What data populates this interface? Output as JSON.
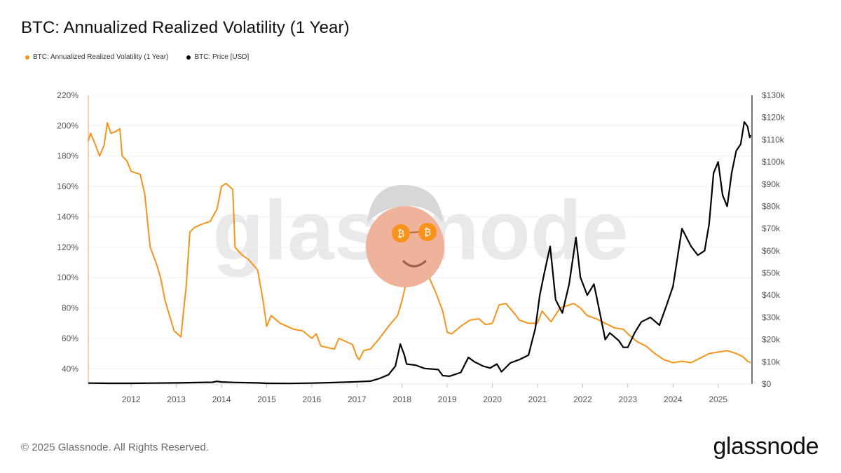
{
  "header": {
    "title": "BTC: Annualized Realized Volatility (1 Year)"
  },
  "legend": [
    {
      "label": "BTC: Annualized Realized Volatility (1 Year)",
      "color": "#f7931a"
    },
    {
      "label": "BTC: Price [USD]",
      "color": "#000000"
    }
  ],
  "watermark": "glassnode",
  "footer": {
    "copyright": "© 2025 Glassnode. All Rights Reserved.",
    "logo": "glassnode"
  },
  "chart_data": {
    "type": "line",
    "title": "BTC: Annualized Realized Volatility (1 Year)",
    "x_ticks": [
      "2012",
      "2013",
      "2014",
      "2015",
      "2016",
      "2017",
      "2018",
      "2019",
      "2020",
      "2021",
      "2022",
      "2023",
      "2024",
      "2025"
    ],
    "x_range": [
      2011.05,
      2025.75
    ],
    "left_axis": {
      "ticks": [
        "40%",
        "60%",
        "80%",
        "100%",
        "120%",
        "140%",
        "160%",
        "180%",
        "200%",
        "220%"
      ],
      "range": [
        30,
        220
      ]
    },
    "right_axis": {
      "ticks": [
        "$0",
        "$10k",
        "$20k",
        "$30k",
        "$40k",
        "$50k",
        "$60k",
        "$70k",
        "$80k",
        "$90k",
        "$100k",
        "$110k",
        "$120k",
        "$130k"
      ],
      "range": [
        0,
        130000
      ]
    },
    "grid": "horizontal",
    "legend_position": "top-left",
    "series": [
      {
        "name": "BTC: Annualized Realized Volatility (1 Year)",
        "axis": "left",
        "color": "#f7931a",
        "points": [
          [
            2011.05,
            190
          ],
          [
            2011.1,
            195
          ],
          [
            2011.2,
            188
          ],
          [
            2011.3,
            180
          ],
          [
            2011.4,
            187
          ],
          [
            2011.47,
            202
          ],
          [
            2011.55,
            195
          ],
          [
            2011.65,
            196
          ],
          [
            2011.75,
            198
          ],
          [
            2011.8,
            180
          ],
          [
            2011.9,
            177
          ],
          [
            2012.0,
            170
          ],
          [
            2012.2,
            168
          ],
          [
            2012.3,
            155
          ],
          [
            2012.42,
            120
          ],
          [
            2012.55,
            110
          ],
          [
            2012.65,
            100
          ],
          [
            2012.75,
            85
          ],
          [
            2012.85,
            75
          ],
          [
            2012.95,
            65
          ],
          [
            2013.1,
            61
          ],
          [
            2013.22,
            95
          ],
          [
            2013.3,
            130
          ],
          [
            2013.4,
            133
          ],
          [
            2013.55,
            135
          ],
          [
            2013.75,
            137
          ],
          [
            2013.9,
            145
          ],
          [
            2014.0,
            160
          ],
          [
            2014.1,
            162
          ],
          [
            2014.25,
            158
          ],
          [
            2014.3,
            120
          ],
          [
            2014.45,
            115
          ],
          [
            2014.6,
            112
          ],
          [
            2014.8,
            105
          ],
          [
            2014.92,
            85
          ],
          [
            2015.0,
            68
          ],
          [
            2015.1,
            75
          ],
          [
            2015.3,
            70
          ],
          [
            2015.6,
            66
          ],
          [
            2015.8,
            65
          ],
          [
            2016.0,
            60
          ],
          [
            2016.1,
            63
          ],
          [
            2016.2,
            55
          ],
          [
            2016.5,
            53
          ],
          [
            2016.6,
            60
          ],
          [
            2016.9,
            56
          ],
          [
            2017.0,
            48
          ],
          [
            2017.05,
            46
          ],
          [
            2017.15,
            52
          ],
          [
            2017.3,
            53
          ],
          [
            2017.5,
            60
          ],
          [
            2017.7,
            68
          ],
          [
            2017.9,
            75
          ],
          [
            2018.0,
            85
          ],
          [
            2018.1,
            98
          ],
          [
            2018.3,
            104
          ],
          [
            2018.6,
            100
          ],
          [
            2018.75,
            90
          ],
          [
            2018.9,
            78
          ],
          [
            2019.0,
            64
          ],
          [
            2019.1,
            63
          ],
          [
            2019.3,
            68
          ],
          [
            2019.5,
            72
          ],
          [
            2019.7,
            73
          ],
          [
            2019.85,
            69
          ],
          [
            2020.0,
            70
          ],
          [
            2020.15,
            82
          ],
          [
            2020.3,
            83
          ],
          [
            2020.5,
            76
          ],
          [
            2020.6,
            72
          ],
          [
            2020.8,
            70
          ],
          [
            2021.0,
            70
          ],
          [
            2021.1,
            78
          ],
          [
            2021.3,
            71
          ],
          [
            2021.5,
            80
          ],
          [
            2021.8,
            83
          ],
          [
            2021.95,
            80
          ],
          [
            2022.1,
            75
          ],
          [
            2022.3,
            73
          ],
          [
            2022.5,
            70
          ],
          [
            2022.7,
            67
          ],
          [
            2022.9,
            66
          ],
          [
            2023.0,
            63
          ],
          [
            2023.2,
            58
          ],
          [
            2023.4,
            55
          ],
          [
            2023.6,
            50
          ],
          [
            2023.8,
            46
          ],
          [
            2024.0,
            44
          ],
          [
            2024.2,
            45
          ],
          [
            2024.4,
            44
          ],
          [
            2024.6,
            47
          ],
          [
            2024.8,
            50
          ],
          [
            2025.0,
            51
          ],
          [
            2025.2,
            52
          ],
          [
            2025.4,
            50
          ],
          [
            2025.55,
            48
          ],
          [
            2025.65,
            45
          ],
          [
            2025.72,
            44
          ]
        ]
      },
      {
        "name": "BTC: Price [USD]",
        "axis": "right",
        "color": "#000000",
        "points": [
          [
            2011.05,
            400
          ],
          [
            2011.5,
            300
          ],
          [
            2012.0,
            300
          ],
          [
            2012.5,
            400
          ],
          [
            2013.0,
            500
          ],
          [
            2013.8,
            800
          ],
          [
            2013.9,
            1200
          ],
          [
            2014.0,
            900
          ],
          [
            2014.3,
            700
          ],
          [
            2014.8,
            500
          ],
          [
            2015.0,
            300
          ],
          [
            2015.5,
            250
          ],
          [
            2016.0,
            400
          ],
          [
            2016.5,
            650
          ],
          [
            2017.0,
            1000
          ],
          [
            2017.3,
            1300
          ],
          [
            2017.5,
            2500
          ],
          [
            2017.7,
            4200
          ],
          [
            2017.85,
            8000
          ],
          [
            2017.96,
            18000
          ],
          [
            2018.05,
            13000
          ],
          [
            2018.1,
            9000
          ],
          [
            2018.3,
            8500
          ],
          [
            2018.5,
            7000
          ],
          [
            2018.8,
            6500
          ],
          [
            2018.9,
            3800
          ],
          [
            2019.05,
            3500
          ],
          [
            2019.3,
            5200
          ],
          [
            2019.47,
            12000
          ],
          [
            2019.6,
            10000
          ],
          [
            2019.8,
            8000
          ],
          [
            2019.95,
            7200
          ],
          [
            2020.1,
            9000
          ],
          [
            2020.2,
            5500
          ],
          [
            2020.4,
            9500
          ],
          [
            2020.6,
            11000
          ],
          [
            2020.8,
            13000
          ],
          [
            2020.95,
            25000
          ],
          [
            2021.05,
            40000
          ],
          [
            2021.15,
            50000
          ],
          [
            2021.28,
            62000
          ],
          [
            2021.4,
            38000
          ],
          [
            2021.55,
            32000
          ],
          [
            2021.7,
            45000
          ],
          [
            2021.85,
            66000
          ],
          [
            2021.95,
            48000
          ],
          [
            2022.1,
            40000
          ],
          [
            2022.25,
            45000
          ],
          [
            2022.4,
            30000
          ],
          [
            2022.5,
            20000
          ],
          [
            2022.6,
            23000
          ],
          [
            2022.8,
            19500
          ],
          [
            2022.9,
            16500
          ],
          [
            2023.0,
            16500
          ],
          [
            2023.15,
            23000
          ],
          [
            2023.3,
            28000
          ],
          [
            2023.5,
            30000
          ],
          [
            2023.7,
            26500
          ],
          [
            2023.85,
            35000
          ],
          [
            2024.0,
            44000
          ],
          [
            2024.2,
            70000
          ],
          [
            2024.4,
            62000
          ],
          [
            2024.55,
            58000
          ],
          [
            2024.7,
            60000
          ],
          [
            2024.8,
            72000
          ],
          [
            2024.9,
            95000
          ],
          [
            2025.0,
            100000
          ],
          [
            2025.1,
            85000
          ],
          [
            2025.2,
            80000
          ],
          [
            2025.3,
            95000
          ],
          [
            2025.4,
            105000
          ],
          [
            2025.5,
            108000
          ],
          [
            2025.58,
            118000
          ],
          [
            2025.65,
            116000
          ],
          [
            2025.7,
            111000
          ],
          [
            2025.72,
            112000
          ]
        ]
      }
    ]
  }
}
